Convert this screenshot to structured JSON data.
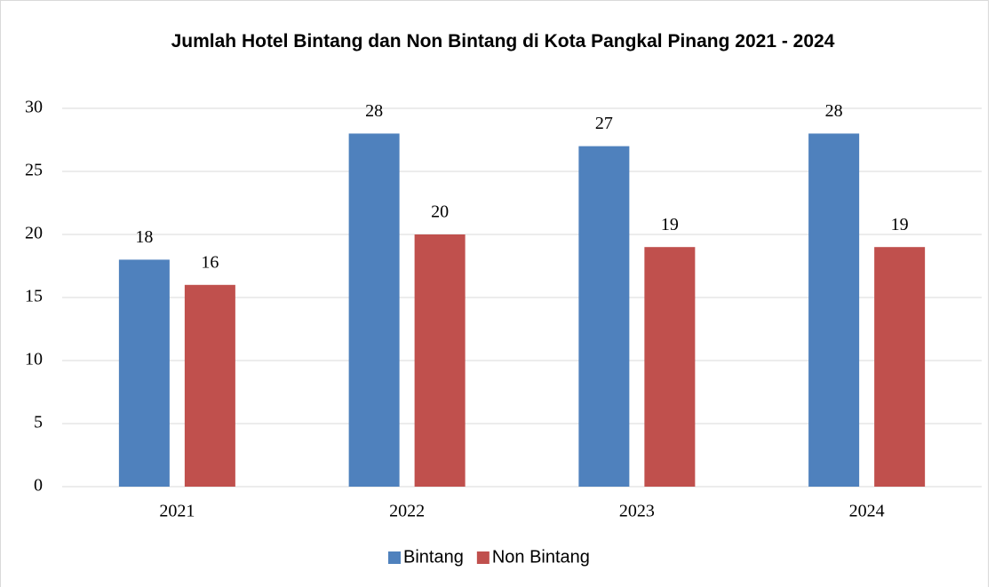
{
  "chart_data": {
    "type": "bar",
    "title": "Jumlah Hotel Bintang dan Non Bintang di Kota Pangkal Pinang 2021 - 2024",
    "categories": [
      "2021",
      "2022",
      "2023",
      "2024"
    ],
    "series": [
      {
        "name": "Bintang",
        "color": "#4f81bd",
        "values": [
          18,
          28,
          27,
          28
        ]
      },
      {
        "name": "Non Bintang",
        "color": "#c0504d",
        "values": [
          16,
          20,
          19,
          19
        ]
      }
    ],
    "ylim": [
      0,
      30
    ],
    "yticks": [
      0,
      5,
      10,
      15,
      20,
      25,
      30
    ],
    "grid": true,
    "legend": "bottom"
  }
}
